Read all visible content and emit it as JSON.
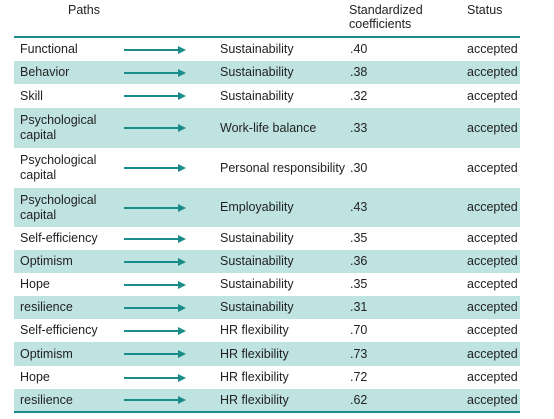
{
  "headers": {
    "paths": "Paths",
    "coefficients": "Standardized coefficients",
    "status": "Status"
  },
  "colors": {
    "accent": "#1a8d8b",
    "shade": "#bfe3e1"
  },
  "rows": [
    {
      "source": "Functional",
      "target": "Sustainability",
      "coefficient": ".40",
      "status": "accepted"
    },
    {
      "source": "Behavior",
      "target": "Sustainability",
      "coefficient": ".38",
      "status": "accepted"
    },
    {
      "source": "Skill",
      "target": "Sustainability",
      "coefficient": ".32",
      "status": "accepted"
    },
    {
      "source": "Psychological capital",
      "target": "Work-life balance",
      "coefficient": ".33",
      "status": "accepted"
    },
    {
      "source": "Psychological capital",
      "target": "Personal responsibility",
      "coefficient": ".30",
      "status": "accepted"
    },
    {
      "source": "Psychological capital",
      "target": "Employability",
      "coefficient": ".43",
      "status": "accepted"
    },
    {
      "source": "Self-efficiency",
      "target": "Sustainability",
      "coefficient": ".35",
      "status": "accepted"
    },
    {
      "source": "Optimism",
      "target": "Sustainability",
      "coefficient": ".36",
      "status": "accepted"
    },
    {
      "source": "Hope",
      "target": "Sustainability",
      "coefficient": ".35",
      "status": "accepted"
    },
    {
      "source": "resilience",
      "target": "Sustainability",
      "coefficient": ".31",
      "status": "accepted"
    },
    {
      "source": "Self-efficiency",
      "target": "HR flexibility",
      "coefficient": ".70",
      "status": "accepted"
    },
    {
      "source": "Optimism",
      "target": "HR flexibility",
      "coefficient": ".73",
      "status": "accepted"
    },
    {
      "source": "Hope",
      "target": "HR flexibility",
      "coefficient": ".72",
      "status": "accepted"
    },
    {
      "source": "resilience",
      "target": "HR flexibility",
      "coefficient": ".62",
      "status": "accepted"
    }
  ]
}
